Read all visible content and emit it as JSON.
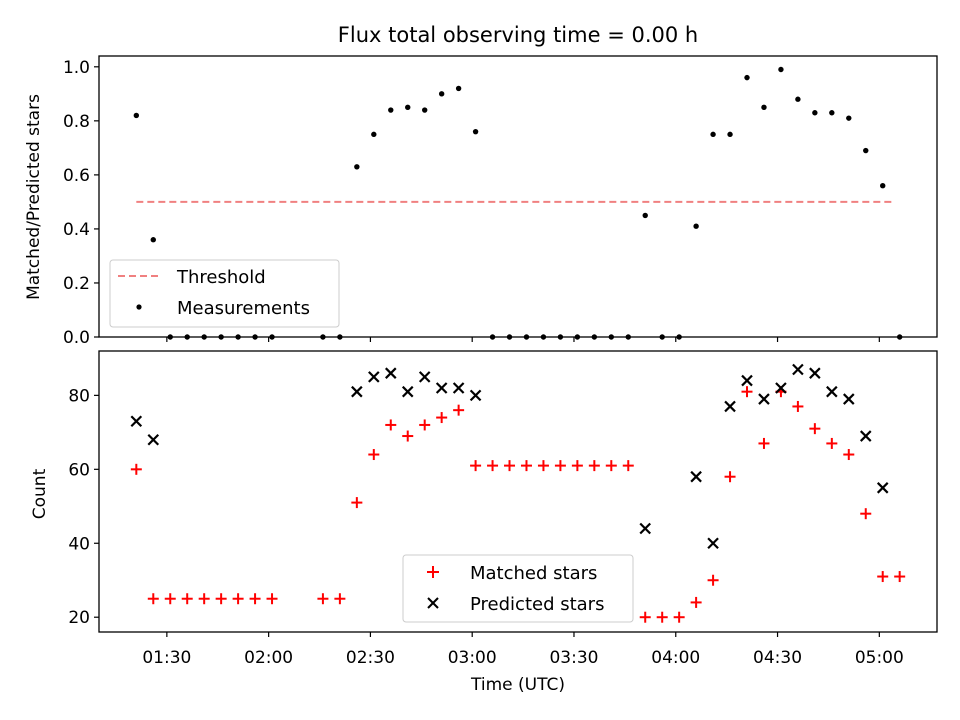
{
  "title": "Flux total observing time = 0.00 h",
  "chart_data": [
    {
      "type": "scatter",
      "panel": "top",
      "ylabel": "Matched/Predicted stars",
      "ylim": [
        0,
        1.04
      ],
      "xlim": [
        "01:10",
        "05:17"
      ],
      "yticks": [
        0.0,
        0.2,
        0.4,
        0.6,
        0.8,
        1.0
      ],
      "ytick_labels": [
        "0.0",
        "0.2",
        "0.4",
        "0.6",
        "0.8",
        "1.0"
      ],
      "legend_position": "lower-left",
      "series": [
        {
          "name": "Threshold",
          "style": "dashed-line",
          "color": "#f08080",
          "x": [
            "01:21",
            "05:04"
          ],
          "y": [
            0.5,
            0.5
          ]
        },
        {
          "name": "Measurements",
          "style": "dot",
          "color": "#000000",
          "x": [
            "01:21",
            "01:26",
            "01:31",
            "01:36",
            "01:41",
            "01:46",
            "01:51",
            "01:56",
            "02:01",
            "02:16",
            "02:21",
            "02:26",
            "02:31",
            "02:36",
            "02:41",
            "02:46",
            "02:51",
            "02:56",
            "03:01",
            "03:06",
            "03:11",
            "03:16",
            "03:21",
            "03:26",
            "03:31",
            "03:36",
            "03:41",
            "03:46",
            "03:51",
            "03:56",
            "04:01",
            "04:06",
            "04:11",
            "04:16",
            "04:21",
            "04:26",
            "04:31",
            "04:36",
            "04:41",
            "04:46",
            "04:51",
            "04:56",
            "05:01",
            "05:06"
          ],
          "y": [
            0.82,
            0.36,
            0,
            0,
            0,
            0,
            0,
            0,
            0,
            0,
            0,
            0.63,
            0.75,
            0.84,
            0.85,
            0.84,
            0.9,
            0.92,
            0.76,
            0,
            0,
            0,
            0,
            0,
            0,
            0,
            0,
            0,
            0.45,
            0,
            0,
            0.41,
            0.75,
            0.75,
            0.96,
            0.85,
            0.99,
            0.88,
            0.83,
            0.83,
            0.81,
            0.69,
            0.56,
            0
          ]
        }
      ]
    },
    {
      "type": "scatter",
      "panel": "bottom",
      "xlabel": "Time (UTC)",
      "ylabel": "Count",
      "ylim": [
        16,
        92
      ],
      "xlim": [
        "01:10",
        "05:17"
      ],
      "yticks": [
        20,
        40,
        60,
        80
      ],
      "ytick_labels": [
        "20",
        "40",
        "60",
        "80"
      ],
      "xticks": [
        "01:30",
        "02:00",
        "02:30",
        "03:00",
        "03:30",
        "04:00",
        "04:30",
        "05:00"
      ],
      "xtick_labels": [
        "01:30",
        "02:00",
        "02:30",
        "03:00",
        "03:30",
        "04:00",
        "04:30",
        "05:00"
      ],
      "legend_position": "lower-center",
      "series": [
        {
          "name": "Matched stars",
          "marker": "plus",
          "color": "#ff0000",
          "x": [
            "01:21",
            "01:26",
            "01:31",
            "01:36",
            "01:41",
            "01:46",
            "01:51",
            "01:56",
            "02:01",
            "02:16",
            "02:21",
            "02:26",
            "02:31",
            "02:36",
            "02:41",
            "02:46",
            "02:51",
            "02:56",
            "03:01",
            "03:06",
            "03:11",
            "03:16",
            "03:21",
            "03:26",
            "03:31",
            "03:36",
            "03:41",
            "03:46",
            "03:51",
            "03:56",
            "04:01",
            "04:06",
            "04:11",
            "04:16",
            "04:21",
            "04:26",
            "04:31",
            "04:36",
            "04:41",
            "04:46",
            "04:51",
            "04:56",
            "05:01",
            "05:06"
          ],
          "y": [
            60,
            25,
            25,
            25,
            25,
            25,
            25,
            25,
            25,
            25,
            25,
            51,
            64,
            72,
            69,
            72,
            74,
            76,
            61,
            61,
            61,
            61,
            61,
            61,
            61,
            61,
            61,
            61,
            20,
            20,
            20,
            24,
            30,
            58,
            81,
            67,
            81,
            77,
            71,
            67,
            64,
            48,
            31,
            31
          ]
        },
        {
          "name": "Predicted stars",
          "marker": "x",
          "color": "#000000",
          "x": [
            "01:21",
            "01:26",
            "02:26",
            "02:31",
            "02:36",
            "02:41",
            "02:46",
            "02:51",
            "02:56",
            "03:01",
            "03:51",
            "04:06",
            "04:11",
            "04:16",
            "04:21",
            "04:26",
            "04:31",
            "04:36",
            "04:41",
            "04:46",
            "04:51",
            "04:56",
            "05:01"
          ],
          "y": [
            73,
            68,
            81,
            85,
            86,
            81,
            85,
            82,
            82,
            80,
            44,
            58,
            40,
            77,
            84,
            79,
            82,
            87,
            86,
            81,
            79,
            69,
            55
          ]
        }
      ]
    }
  ]
}
